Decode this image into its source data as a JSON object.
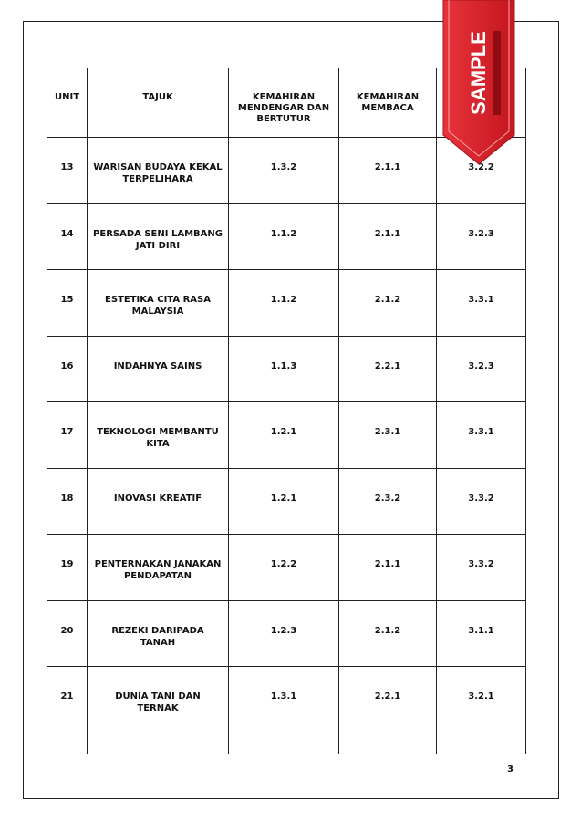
{
  "table": {
    "headers": [
      "UNIT",
      "TAJUK",
      "KEMAHIRAN MENDENGAR DAN BERTUTUR",
      "KEMAHIRAN MEMBACA",
      ""
    ],
    "rows": [
      {
        "unit": "13",
        "tajuk": "WARISAN BUDAYA KEKAL TERPELIHARA",
        "mendengar": "1.3.2",
        "membaca": "2.1.1",
        "col5": "3.2.2"
      },
      {
        "unit": "14",
        "tajuk": "PERSADA SENI LAMBANG JATI DIRI",
        "mendengar": "1.1.2",
        "membaca": "2.1.1",
        "col5": "3.2.3"
      },
      {
        "unit": "15",
        "tajuk": "ESTETIKA CITA RASA MALAYSIA",
        "mendengar": "1.1.2",
        "membaca": "2.1.2",
        "col5": "3.3.1"
      },
      {
        "unit": "16",
        "tajuk": "INDAHNYA SAINS",
        "mendengar": "1.1.3",
        "membaca": "2.2.1",
        "col5": "3.2.3"
      },
      {
        "unit": "17",
        "tajuk": "TEKNOLOGI MEMBANTU KITA",
        "mendengar": "1.2.1",
        "membaca": "2.3.1",
        "col5": "3.3.1"
      },
      {
        "unit": "18",
        "tajuk": "INOVASI KREATIF",
        "mendengar": "1.2.1",
        "membaca": "2.3.2",
        "col5": "3.3.2"
      },
      {
        "unit": "19",
        "tajuk": "PENTERNAKAN JANAKAN PENDAPATAN",
        "mendengar": "1.2.2",
        "membaca": "2.1.1",
        "col5": "3.3.2"
      },
      {
        "unit": "20",
        "tajuk": "REZEKI DARIPADA TANAH",
        "mendengar": "1.2.3",
        "membaca": "2.1.2",
        "col5": "3.1.1"
      },
      {
        "unit": "21",
        "tajuk": "DUNIA TANI DAN TERNAK",
        "mendengar": "1.3.1",
        "membaca": "2.2.1",
        "col5": "3.2.1"
      }
    ]
  },
  "page_number": "3",
  "badge": {
    "text": "SAMPLE",
    "color": "#d9202a"
  }
}
